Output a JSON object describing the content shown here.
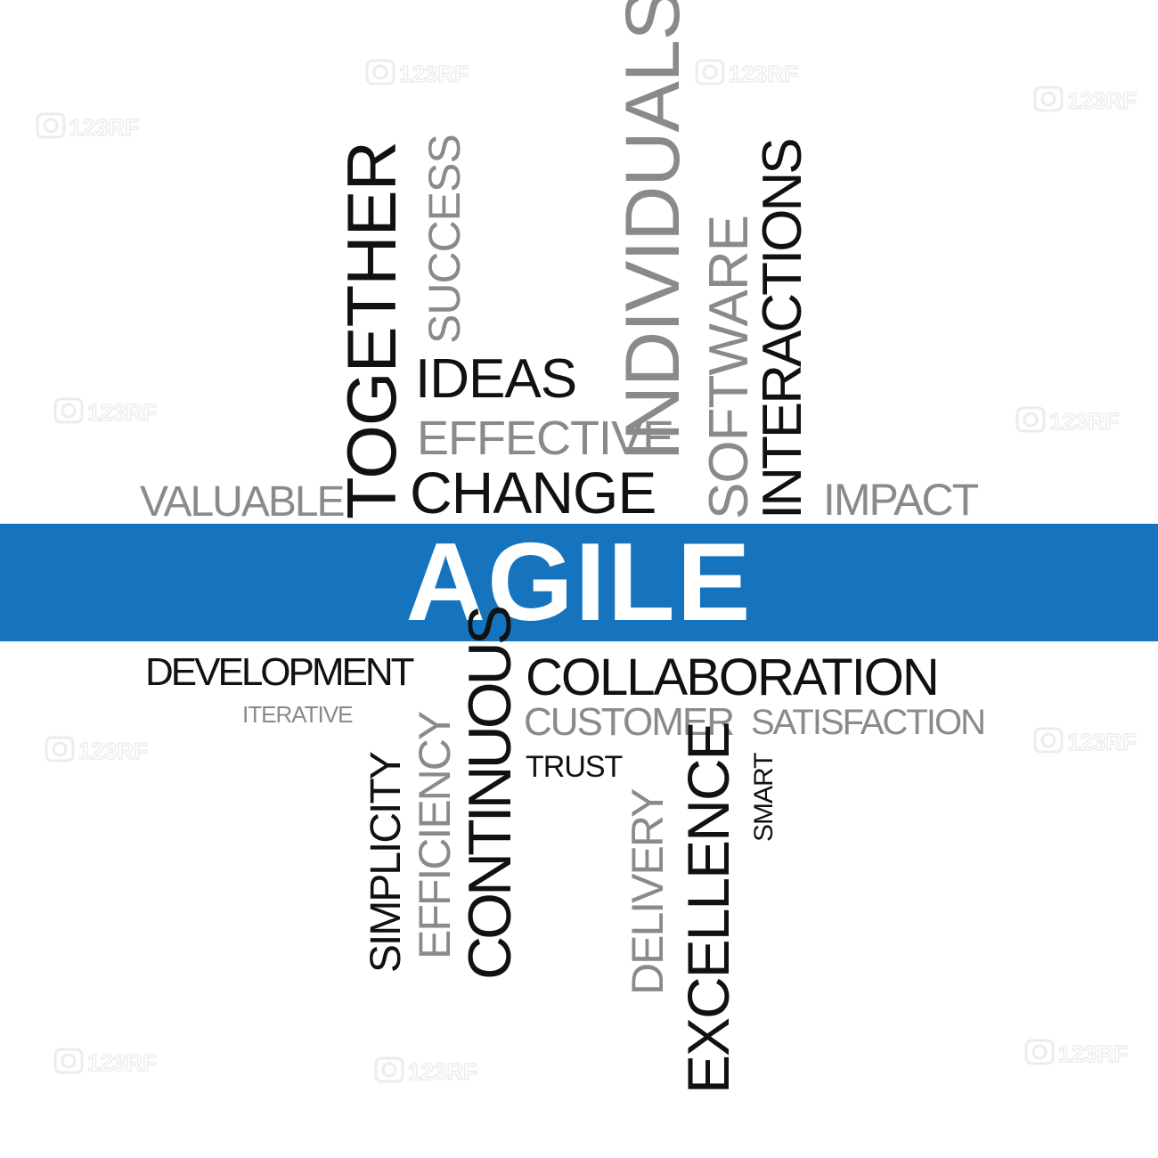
{
  "banner_word": "AGILE",
  "colors": {
    "banner": "#1574bd",
    "dark_text": "#111111",
    "grey_text": "#8a8a8a",
    "background": "#ffffff"
  },
  "words": {
    "together": "TOGETHER",
    "success": "SUCCESS",
    "ideas": "IDEAS",
    "effective": "EFFECTIVE",
    "change": "CHANGE",
    "individuals": "INDIVIDUALS",
    "software": "SOFTWARE",
    "interactions": "INTERACTIONS",
    "valuable": "VALUABLE",
    "impact": "IMPACT",
    "development": "DEVELOPMENT",
    "iterative": "ITERATIVE",
    "simplicity": "SIMPLICITY",
    "efficiency": "EFFICIENCY",
    "continuous": "CONTINUOUS",
    "collaboration": "COLLABORATION",
    "customer": "CUSTOMER",
    "satisfaction": "SATISFACTION",
    "trust": "TRUST",
    "delivery": "DELIVERY",
    "excellence": "EXCELLENCE",
    "smart": "SMART"
  },
  "watermark_text": "123RF",
  "watermark_icon": "camera-icon"
}
